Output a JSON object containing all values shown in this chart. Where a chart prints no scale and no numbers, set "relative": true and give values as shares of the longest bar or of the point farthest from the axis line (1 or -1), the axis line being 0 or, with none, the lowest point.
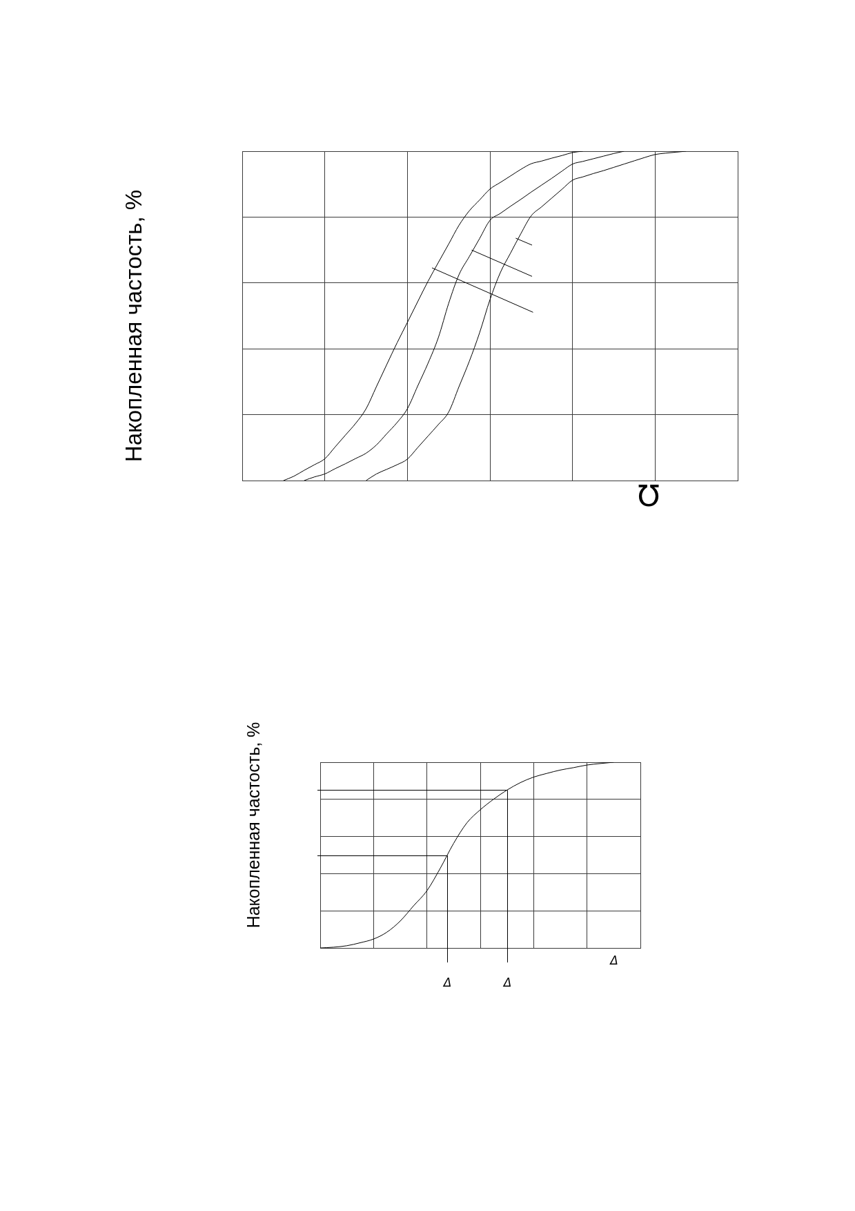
{
  "chart_data": [
    {
      "type": "line",
      "ylabel": "Накопленная частость, %",
      "xlabel": "Ʊ",
      "relative": true,
      "tick_labels": false,
      "grid": true,
      "categories": [
        null,
        null,
        null,
        null,
        null,
        null,
        null,
        null,
        null,
        null,
        null,
        null,
        null,
        null,
        null,
        null,
        null,
        null,
        null,
        null,
        null,
        null,
        null,
        null,
        null,
        null,
        null,
        null,
        null,
        null,
        null,
        null,
        null,
        null,
        null,
        null,
        null,
        null,
        null,
        null,
        null,
        null,
        null,
        null,
        null,
        null,
        null,
        null,
        null
      ],
      "series": [
        {
          "color": "#000000",
          "values": [
            null,
            null,
            null,
            null,
            0,
            0.013,
            0.031,
            0.048,
            0.066,
            0.102,
            0.138,
            0.174,
            0.218,
            0.285,
            0.352,
            0.418,
            0.48,
            0.543,
            0.605,
            0.662,
            0.718,
            0.775,
            0.819,
            0.852,
            0.885,
            0.905,
            0.925,
            0.945,
            0.962,
            0.97,
            0.979,
            0.987,
            0.996,
            1,
            null,
            null,
            null,
            null,
            null,
            null,
            null,
            null,
            null,
            null,
            null,
            null,
            null,
            null,
            null
          ]
        },
        {
          "color": "#000000",
          "values": [
            null,
            null,
            null,
            null,
            null,
            null,
            0,
            0.011,
            0.02,
            0.036,
            0.051,
            0.067,
            0.083,
            0.108,
            0.142,
            0.176,
            0.218,
            0.287,
            0.356,
            0.434,
            0.538,
            0.625,
            0.68,
            0.735,
            0.79,
            0.811,
            0.833,
            0.854,
            0.876,
            0.897,
            0.918,
            0.94,
            0.961,
            0.969,
            0.977,
            0.985,
            0.993,
            1,
            null,
            null,
            null,
            null,
            null,
            null,
            null,
            null,
            null,
            null,
            null
          ]
        },
        {
          "color": "#000000",
          "values": [
            null,
            null,
            null,
            null,
            null,
            null,
            null,
            null,
            null,
            null,
            null,
            null,
            0,
            0.02,
            0.034,
            0.048,
            0.065,
            0.1,
            0.135,
            0.17,
            0.208,
            0.285,
            0.362,
            0.449,
            0.549,
            0.631,
            0.691,
            0.75,
            0.804,
            0.831,
            0.858,
            0.885,
            0.912,
            0.922,
            0.932,
            0.941,
            0.951,
            0.961,
            0.971,
            0.981,
            0.99,
            0.994,
            0.997,
            1,
            null,
            null,
            null,
            null,
            null
          ]
        }
      ]
    },
    {
      "type": "line",
      "ylabel": "Накопленная частость, %",
      "xlabel": "Δ",
      "relative": true,
      "tick_labels": false,
      "grid": true,
      "categories": [
        null,
        null,
        null,
        null,
        null,
        null,
        null,
        null,
        null,
        null,
        null,
        null,
        null,
        null,
        null,
        null,
        null,
        null,
        null,
        null,
        null,
        null,
        null,
        null,
        null
      ],
      "color": "#000000",
      "values": [
        0,
        0.004,
        0.012,
        0.028,
        0.048,
        0.085,
        0.145,
        0.227,
        0.308,
        0.429,
        0.563,
        0.674,
        0.744,
        0.801,
        0.85,
        0.89,
        0.92,
        0.94,
        0.958,
        0.971,
        0.985,
        0.993,
        1,
        null,
        null
      ],
      "ref_lines": [
        {
          "axis": "y",
          "value": 0.5,
          "label": "Δ"
        },
        {
          "axis": "y",
          "value": 0.85,
          "label": "Δ"
        }
      ]
    }
  ]
}
